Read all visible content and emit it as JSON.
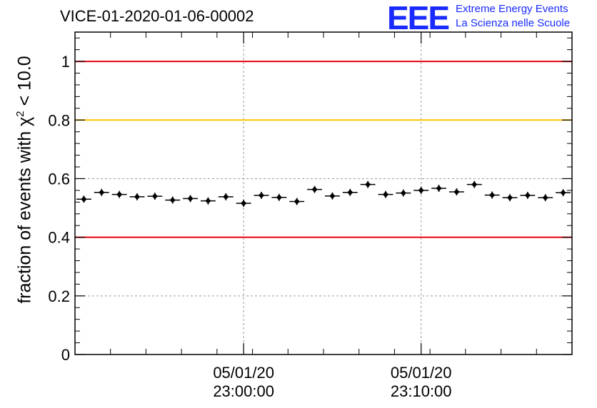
{
  "header": {
    "title": "VICE-01-2020-01-06-00002",
    "logo_mark": "EEE",
    "logo_line1": "Extreme Energy Events",
    "logo_line2": "La Scienza nelle Scuole"
  },
  "colors": {
    "logo": "#1a2bff",
    "red_line": "#e8000b",
    "yellow_line": "#ffc400",
    "marker": "#000000",
    "grid": "#9a9a9a"
  },
  "chart_data": {
    "type": "scatter",
    "title": "VICE-01-2020-01-06-00002",
    "ylabel_parts": {
      "prefix": "fraction of events with ",
      "chi": "χ",
      "sup": "2",
      "suffix": " < 10.0"
    },
    "ylim": [
      0,
      1.1
    ],
    "yticks": [
      {
        "value": 0,
        "label": "0"
      },
      {
        "value": 0.2,
        "label": "0.2"
      },
      {
        "value": 0.4,
        "label": "0.4"
      },
      {
        "value": 0.6,
        "label": "0.6"
      },
      {
        "value": 0.8,
        "label": "0.8"
      },
      {
        "value": 1,
        "label": "1"
      }
    ],
    "x_unit": "minutes since 05/01/20 22:50:30",
    "xlim": [
      0,
      28
    ],
    "xticks": [
      {
        "value": 9.5,
        "label_date": "05/01/20",
        "label_time": "23:00:00"
      },
      {
        "value": 19.5,
        "label_date": "05/01/20",
        "label_time": "23:10:00"
      }
    ],
    "x_minor_step": 2,
    "grid": true,
    "reference_lines": [
      {
        "y": 1.0,
        "color": "red"
      },
      {
        "y": 0.8,
        "color": "yellow"
      },
      {
        "y": 0.4,
        "color": "red"
      }
    ],
    "points": [
      {
        "x": 0.5,
        "y": 0.53
      },
      {
        "x": 1.5,
        "y": 0.553
      },
      {
        "x": 2.5,
        "y": 0.546
      },
      {
        "x": 3.5,
        "y": 0.538
      },
      {
        "x": 4.5,
        "y": 0.54
      },
      {
        "x": 5.5,
        "y": 0.527
      },
      {
        "x": 6.5,
        "y": 0.532
      },
      {
        "x": 7.5,
        "y": 0.524
      },
      {
        "x": 8.5,
        "y": 0.538
      },
      {
        "x": 9.5,
        "y": 0.516
      },
      {
        "x": 10.5,
        "y": 0.543
      },
      {
        "x": 11.5,
        "y": 0.536
      },
      {
        "x": 12.5,
        "y": 0.522
      },
      {
        "x": 13.5,
        "y": 0.563
      },
      {
        "x": 14.5,
        "y": 0.541
      },
      {
        "x": 15.5,
        "y": 0.553
      },
      {
        "x": 16.5,
        "y": 0.58
      },
      {
        "x": 17.5,
        "y": 0.546
      },
      {
        "x": 18.5,
        "y": 0.551
      },
      {
        "x": 19.5,
        "y": 0.56
      },
      {
        "x": 20.5,
        "y": 0.567
      },
      {
        "x": 21.5,
        "y": 0.555
      },
      {
        "x": 22.5,
        "y": 0.58
      },
      {
        "x": 23.5,
        "y": 0.544
      },
      {
        "x": 24.5,
        "y": 0.535
      },
      {
        "x": 25.5,
        "y": 0.543
      },
      {
        "x": 26.5,
        "y": 0.535
      },
      {
        "x": 27.5,
        "y": 0.552
      }
    ]
  }
}
